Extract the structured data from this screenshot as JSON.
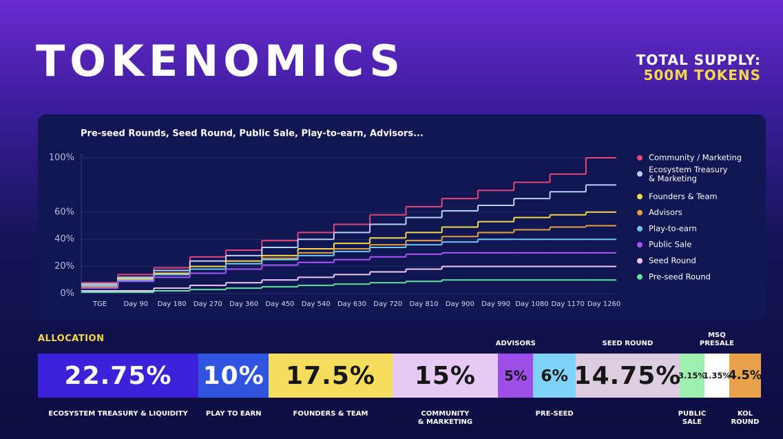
{
  "header": {
    "title": "TOKENOMICS",
    "supply_label": "TOTAL SUPPLY:",
    "supply_value": "500M TOKENS"
  },
  "chart_data": {
    "type": "line",
    "step": true,
    "title": "Pre-seed Rounds, Seed Round, Public Sale, Play-to-earn, Advisors...",
    "categories": [
      "TGE",
      "Day 90",
      "Day 180",
      "Day 270",
      "Day 360",
      "Day 450",
      "Day 540",
      "Day 630",
      "Day 720",
      "Day 810",
      "Day 900",
      "Day 990",
      "Day 1080",
      "Day 1170",
      "Day 1260"
    ],
    "ylim": [
      0,
      100
    ],
    "yticks": [
      {
        "value": 0,
        "label": "0%"
      },
      {
        "value": 20,
        "label": "20%"
      },
      {
        "value": 40,
        "label": "40%"
      },
      {
        "value": 60,
        "label": "60%"
      },
      {
        "value": 100,
        "label": "100%"
      }
    ],
    "grid": true,
    "legend": "right",
    "series": [
      {
        "name": "Community / Marketing",
        "color": "#e3477a",
        "values": [
          8,
          14,
          19,
          27,
          32,
          39,
          45,
          51,
          58,
          64,
          70,
          76,
          82,
          88,
          100
        ]
      },
      {
        "name": "Ecosystem Treasury\n& Marketing",
        "color": "#bcd0f5",
        "values": [
          7,
          12,
          17,
          24,
          28,
          34,
          40,
          45,
          51,
          56,
          61,
          65,
          70,
          75,
          80
        ]
      },
      {
        "name": "Founders & Team",
        "color": "#f5d84a",
        "values": [
          6,
          11,
          15,
          20,
          24,
          28,
          33,
          37,
          41,
          45,
          49,
          53,
          56,
          58,
          60
        ]
      },
      {
        "name": "Advisors",
        "color": "#e6a03c",
        "values": [
          5,
          10,
          14,
          18,
          22,
          26,
          30,
          33,
          36,
          39,
          42,
          45,
          47,
          49,
          50
        ]
      },
      {
        "name": "Play-to-earn",
        "color": "#6ec6ef",
        "values": [
          6,
          10,
          14,
          18,
          22,
          25,
          28,
          31,
          34,
          36,
          38,
          40,
          40,
          40,
          40
        ]
      },
      {
        "name": "Public Sale",
        "color": "#a855f7",
        "values": [
          4,
          9,
          12,
          15,
          18,
          21,
          23,
          25,
          27,
          29,
          30,
          30,
          30,
          30,
          30
        ]
      },
      {
        "name": "Seed Round",
        "color": "#f0c8f5",
        "values": [
          2,
          2,
          4,
          6,
          8,
          10,
          12,
          14,
          16,
          18,
          20,
          20,
          20,
          20,
          20
        ]
      },
      {
        "name": "Pre-seed Round",
        "color": "#5ee6a0",
        "values": [
          1,
          1,
          2,
          3,
          4,
          5,
          6,
          7,
          8,
          9,
          10,
          10,
          10,
          10,
          10
        ]
      }
    ]
  },
  "allocation": {
    "title": "ALLOCATION",
    "segments": [
      {
        "name": "ECOSYSTEM TREASURY & LIQUIDITY",
        "value": 22.75,
        "value_label": "22.75%",
        "color": "#3b22d9"
      },
      {
        "name": "PLAY TO EARN",
        "value": 10,
        "value_label": "10%",
        "color": "#2f55e0"
      },
      {
        "name": "FOUNDERS & TEAM",
        "value": 17.5,
        "value_label": "17.5%",
        "color": "#f5dc5a"
      },
      {
        "name": "COMMUNITY\n& MARKETING",
        "value": 15,
        "value_label": "15%",
        "color": "#e8c8f5"
      },
      {
        "name": "ADVISORS",
        "value": 5,
        "value_label": "5%",
        "color": "#9d4ee8"
      },
      {
        "name": "PRE-SEED",
        "value": 6,
        "value_label": "6%",
        "color": "#7ed3f7"
      },
      {
        "name": "SEED ROUND",
        "value": 14.75,
        "value_label": "14.75%",
        "color": "#dccde0"
      },
      {
        "name": "PUBLIC\nSALE",
        "value": 3.15,
        "value_label": "3.15%",
        "color": "#9ef0b0"
      },
      {
        "name": "MSQ\nPRESALE",
        "value": 1.35,
        "value_label": "1.35%",
        "color": "#ffffff"
      },
      {
        "name": "KOL\nROUND",
        "value": 4.5,
        "value_label": "4.5%",
        "color": "#e8a24a"
      }
    ]
  }
}
